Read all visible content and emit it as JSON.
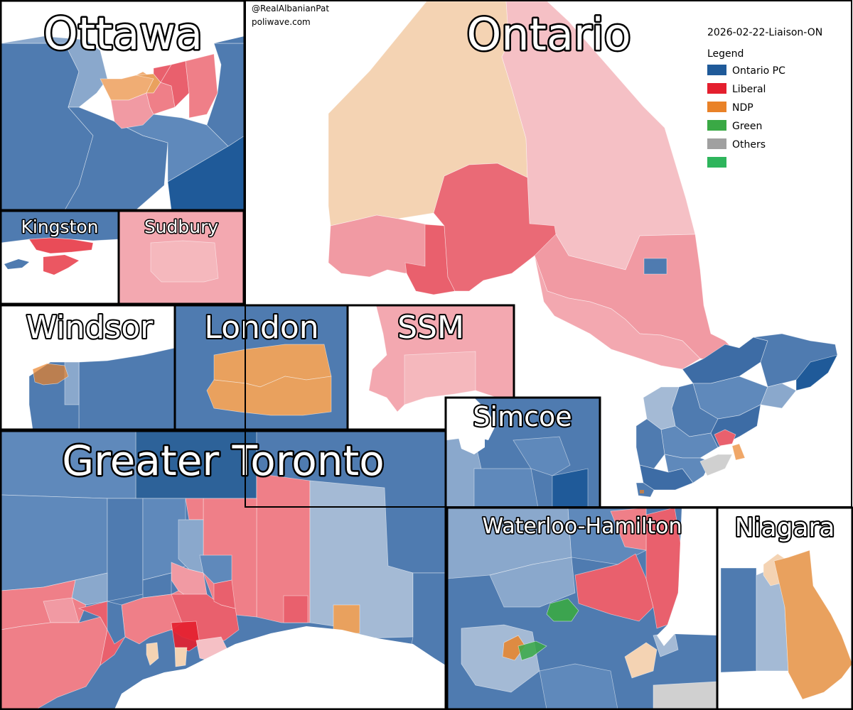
{
  "credits": {
    "author": "@RealAlbanianPat",
    "site": "poliwave.com"
  },
  "main_title": "Ontario",
  "poll_label": "2026-02-22-Liaison-ON",
  "legend": {
    "title": "Legend",
    "items": [
      {
        "label": "Ontario PC",
        "color": "#1f5a99"
      },
      {
        "label": "Liberal",
        "color": "#e41f2e"
      },
      {
        "label": "NDP",
        "color": "#e98228"
      },
      {
        "label": "Green",
        "color": "#3aa945"
      },
      {
        "label": "Others",
        "color": "#a0a0a0"
      },
      {
        "label": "",
        "color": "#2eb55c"
      }
    ]
  },
  "insets": {
    "ottawa": "Ottawa",
    "kingston": "Kingston",
    "sudbury": "Sudbury",
    "windsor": "Windsor",
    "london": "London",
    "ssm": "SSM",
    "greater_toronto": "Greater Toronto",
    "simcoe": "Simcoe",
    "waterloo_hamilton": "Waterloo-Hamilton",
    "niagara": "Niagara"
  }
}
